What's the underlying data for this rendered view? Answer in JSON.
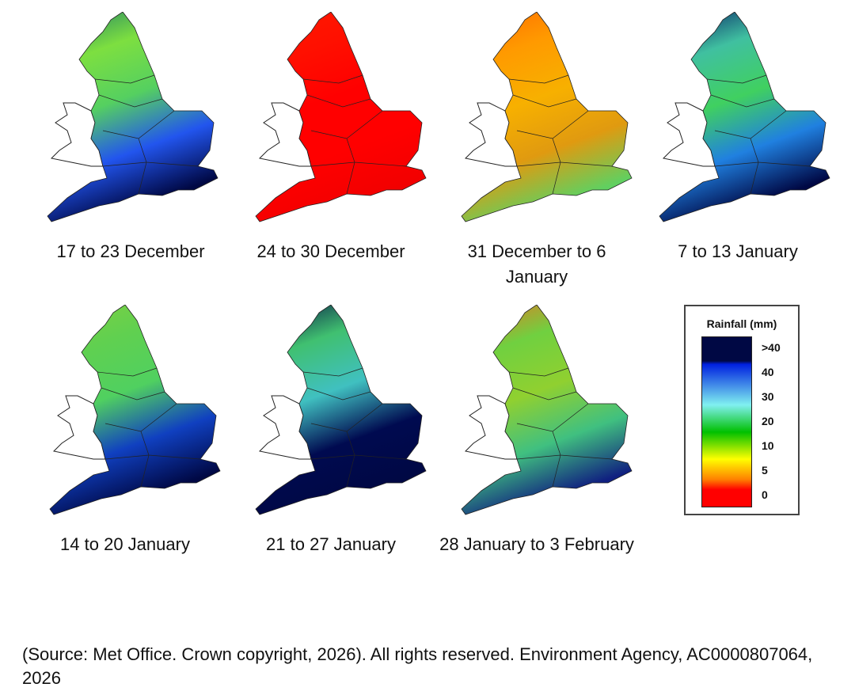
{
  "maps": [
    {
      "label": "17 to 23 December",
      "colors": [
        "#1a7a6a",
        "#7ddf40",
        "#55d060",
        "#2255ee",
        "#000844"
      ]
    },
    {
      "label": "24 to 30 December",
      "colors": [
        "#ff1a00",
        "#ff1000",
        "#ff0000",
        "#ff0000",
        "#f20000"
      ]
    },
    {
      "label": "31 December to 6 January",
      "colors": [
        "#ff6a00",
        "#ff9a00",
        "#f7b000",
        "#e09a10",
        "#60d060"
      ]
    },
    {
      "label": "7 to 13 January",
      "colors": [
        "#001060",
        "#40c0a0",
        "#40d060",
        "#2080e0",
        "#000844"
      ]
    },
    {
      "label": "14 to 20 January",
      "colors": [
        "#80d040",
        "#60d050",
        "#50d060",
        "#1040c0",
        "#000844"
      ]
    },
    {
      "label": "21 to 27 January",
      "colors": [
        "#000844",
        "#40c070",
        "#40c0c0",
        "#000a50",
        "#000844"
      ]
    },
    {
      "label": "28 January to 3 February",
      "colors": [
        "#f07020",
        "#70d040",
        "#90d030",
        "#40c080",
        "#102080"
      ]
    }
  ],
  "legend": {
    "title": "Rainfall (mm)",
    "ticks": [
      ">40",
      "40",
      "30",
      "20",
      "10",
      "5",
      "0"
    ],
    "colors": [
      "#000844",
      "#0020e0",
      "#80f0f0",
      "#00c000",
      "#ffff00",
      "#ff8000",
      "#ff0000"
    ]
  },
  "source": "(Source: Met Office. Crown copyright, 2026). All rights reserved. Environment Agency, AC0000807064, 2026"
}
